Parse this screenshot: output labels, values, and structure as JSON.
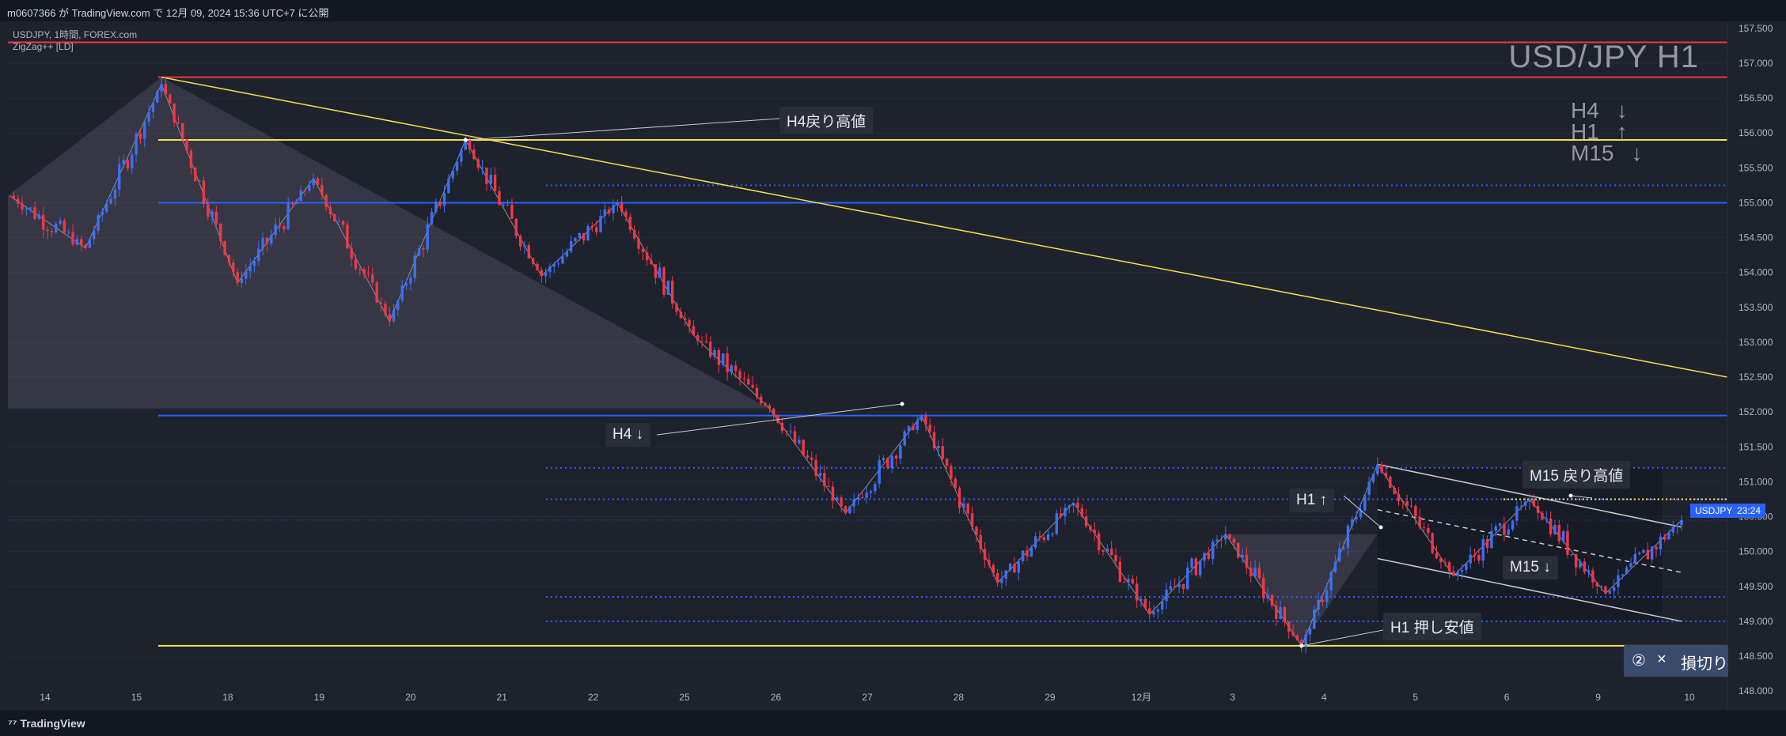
{
  "header": {
    "publish_text": "m0607366 が TradingView.com で 12月 09, 2024 15:36 UTC+7 に公開"
  },
  "legend": {
    "symbol_line": "USDJPY, 1時間, FOREX.com",
    "indicator_line": "ZigZag++ [LD]"
  },
  "title": "USD/JPY H1",
  "trend": [
    {
      "tf": "H4",
      "arrow": "↓"
    },
    {
      "tf": "H1",
      "arrow": "↑"
    },
    {
      "tf": "M15",
      "arrow": "↓"
    }
  ],
  "annotations": {
    "h4_pullback_high": "H4戻り高値",
    "h4_down": "H4 ↓",
    "h1_up": "H1 ↑",
    "m15_pullback_high": "M15 戻り高値",
    "m15_down": "M15 ↓",
    "h1_pullback_low": "H1 押し安値"
  },
  "price_tag": {
    "symbol": "USDJPY",
    "countdown": "23:24"
  },
  "order_panel": {
    "icon1": "②",
    "icon2": "×",
    "label": "損切り"
  },
  "footer": {
    "brand": "TradingView"
  },
  "colors": {
    "background": "#1e222d",
    "up": "#3d6ff5",
    "down": "#f23645",
    "blue_level": "#2962ff",
    "yellow_level": "#f4e04d",
    "red_level": "#f23645"
  },
  "chart_data": {
    "type": "candlestick",
    "symbol": "USDJPY",
    "timeframe": "1時間",
    "ylim": [
      147.9,
      157.6
    ],
    "y_ticks": [
      "157.500",
      "157.000",
      "156.500",
      "156.000",
      "155.500",
      "155.000",
      "154.500",
      "154.000",
      "153.500",
      "153.000",
      "152.500",
      "152.000",
      "151.500",
      "151.000",
      "150.500",
      "150.000",
      "149.500",
      "149.000",
      "148.500",
      "148.000"
    ],
    "x_ticks": [
      "14",
      "15",
      "18",
      "19",
      "20",
      "21",
      "22",
      "25",
      "26",
      "27",
      "28",
      "29",
      "12月",
      "3",
      "4",
      "5",
      "6",
      "9",
      "10"
    ],
    "zigzag": [
      155.1,
      154.35,
      156.7,
      153.85,
      155.35,
      153.3,
      155.9,
      153.95,
      155.0,
      153.1,
      152.05,
      150.55,
      151.95,
      149.55,
      150.7,
      149.1,
      150.25,
      148.65,
      151.25,
      149.65,
      150.75,
      149.4,
      150.45
    ],
    "horizontal_levels": [
      {
        "price": 157.3,
        "color": "red"
      },
      {
        "price": 156.8,
        "color": "red"
      },
      {
        "price": 155.9,
        "color": "yellow"
      },
      {
        "price": 155.0,
        "color": "blue"
      },
      {
        "price": 151.95,
        "color": "blue"
      },
      {
        "price": 148.65,
        "color": "yellow"
      }
    ],
    "dotted_levels": [
      155.25,
      151.2,
      150.75,
      149.35,
      149.0
    ],
    "trendline": {
      "from": 156.8,
      "to": 152.5
    },
    "last_price": 150.45
  }
}
